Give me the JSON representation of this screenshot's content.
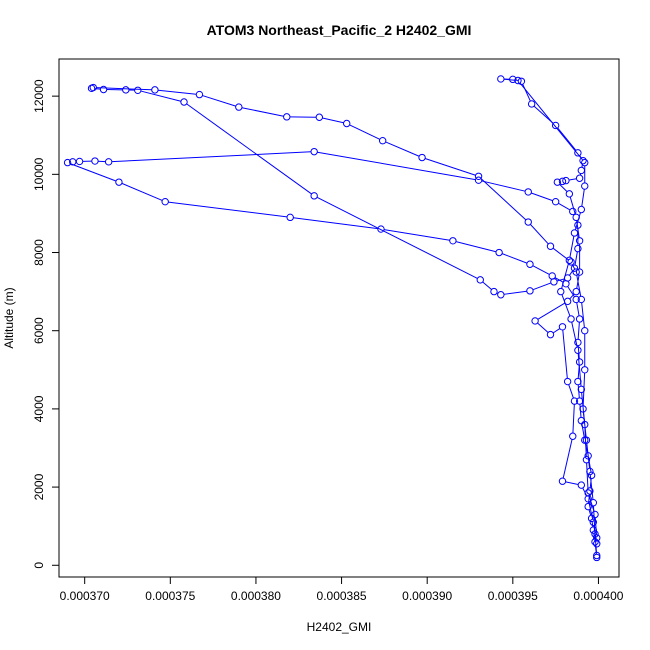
{
  "chart_data": {
    "type": "line",
    "title": "ATOM3 Northeast_Pacific_2 H2402_GMI",
    "xlabel": "H2402_GMI",
    "ylabel": "Altitude (m)",
    "xlim": [
      0.0003685,
      0.0004012
    ],
    "ylim": [
      -300,
      12950
    ],
    "x_ticks": [
      0.00037,
      0.000375,
      0.00038,
      0.000385,
      0.00039,
      0.000395,
      0.0004
    ],
    "x_tick_labels": [
      "0.000370",
      "0.000375",
      "0.000380",
      "0.000385",
      "0.000390",
      "0.000395",
      "0.000400"
    ],
    "y_ticks": [
      0,
      2000,
      4000,
      6000,
      8000,
      10000,
      12000
    ],
    "y_tick_labels": [
      "0",
      "2000",
      "4000",
      "6000",
      "8000",
      "10000",
      "12000"
    ],
    "color": "#0000ff",
    "series": [
      {
        "values": [
          [
            0.0003999,
            200
          ],
          [
            0.0003998,
            600
          ],
          [
            0.0003997,
            900
          ],
          [
            0.0003996,
            1200
          ],
          [
            0.0003994,
            1500
          ],
          [
            0.0003995,
            1900
          ],
          [
            0.0003996,
            2300
          ],
          [
            0.0003994,
            2800
          ],
          [
            0.0003992,
            3200
          ],
          [
            0.000399,
            3700
          ],
          [
            0.0003989,
            4200
          ],
          [
            0.0003988,
            4700
          ],
          [
            0.0003989,
            5200
          ],
          [
            0.0003988,
            5700
          ],
          [
            0.0003989,
            6300
          ],
          [
            0.0003987,
            6800
          ],
          [
            0.0003981,
            7200
          ],
          [
            0.0003973,
            7400
          ],
          [
            0.000396,
            7700
          ],
          [
            0.0003942,
            8000
          ],
          [
            0.0003915,
            8300
          ],
          [
            0.0003873,
            8600
          ],
          [
            0.000382,
            8900
          ],
          [
            0.0003747,
            9300
          ],
          [
            0.000372,
            9800
          ],
          [
            0.000369,
            10300
          ],
          [
            0.0003693,
            10320
          ],
          [
            0.0003697,
            10330
          ],
          [
            0.0003706,
            10340
          ],
          [
            0.0003714,
            10320
          ],
          [
            0.0003834,
            10580
          ],
          [
            0.000393,
            9850
          ],
          [
            0.0003959,
            9550
          ],
          [
            0.0003975,
            9300
          ],
          [
            0.0003985,
            9050
          ]
        ]
      },
      {
        "values": [
          [
            0.0003988,
            8700
          ],
          [
            0.0003988,
            8100
          ],
          [
            0.0003986,
            7600
          ],
          [
            0.0003982,
            7350
          ],
          [
            0.0003974,
            7250
          ],
          [
            0.000396,
            7020
          ],
          [
            0.0003943,
            6920
          ],
          [
            0.0003939,
            7000
          ],
          [
            0.0003931,
            7300
          ],
          [
            0.0003834,
            9450
          ],
          [
            0.0003758,
            11850
          ],
          [
            0.0003731,
            12150
          ],
          [
            0.0003724,
            12160
          ],
          [
            0.0003711,
            12170
          ],
          [
            0.0003704,
            12200
          ],
          [
            0.0003705,
            12220
          ],
          [
            0.0003741,
            12160
          ],
          [
            0.0003767,
            12040
          ],
          [
            0.000379,
            11720
          ],
          [
            0.0003818,
            11470
          ],
          [
            0.0003837,
            11460
          ],
          [
            0.0003853,
            11300
          ],
          [
            0.0003874,
            10860
          ],
          [
            0.0003897,
            10430
          ],
          [
            0.000393,
            9950
          ],
          [
            0.0003959,
            8780
          ],
          [
            0.0003972,
            8160
          ],
          [
            0.0003984,
            7760
          ],
          [
            0.0003987,
            7500
          ],
          [
            0.000399,
            6800
          ],
          [
            0.0003992,
            6000
          ],
          [
            0.0003992,
            5000
          ],
          [
            0.0003991,
            4000
          ],
          [
            0.0003993,
            3200
          ],
          [
            0.0003995,
            2400
          ],
          [
            0.0003997,
            1600
          ],
          [
            0.0003998,
            800
          ],
          [
            0.0003999,
            250
          ]
        ]
      },
      {
        "values": [
          [
            0.0003999,
            550
          ],
          [
            0.0003997,
            1100
          ],
          [
            0.0003994,
            1700
          ],
          [
            0.000399,
            2050
          ],
          [
            0.0003979,
            2150
          ],
          [
            0.0003985,
            3300
          ],
          [
            0.0003986,
            4200
          ],
          [
            0.0003982,
            4700
          ],
          [
            0.0003979,
            6100
          ],
          [
            0.0003972,
            5900
          ],
          [
            0.0003963,
            6250
          ],
          [
            0.0003982,
            6750
          ],
          [
            0.0003987,
            7000
          ],
          [
            0.0003989,
            7500
          ],
          [
            0.0003989,
            8300
          ],
          [
            0.0003987,
            8900
          ],
          [
            0.0003983,
            9500
          ],
          [
            0.0003976,
            9800
          ],
          [
            0.0003979,
            9820
          ],
          [
            0.0003981,
            9840
          ],
          [
            0.0003989,
            9900
          ],
          [
            0.000399,
            10100
          ],
          [
            0.0003991,
            10350
          ],
          [
            0.0003988,
            10550
          ],
          [
            0.0003975,
            11250
          ],
          [
            0.0003961,
            11800
          ],
          [
            0.0003955,
            12380
          ],
          [
            0.000395,
            12430
          ],
          [
            0.0003943,
            12440
          ],
          [
            0.0003953,
            12400
          ],
          [
            0.0003992,
            10300
          ],
          [
            0.0003992,
            9700
          ],
          [
            0.000399,
            9100
          ],
          [
            0.0003986,
            8500
          ],
          [
            0.0003983,
            7800
          ],
          [
            0.0003978,
            7000
          ],
          [
            0.0003984,
            6300
          ],
          [
            0.0003988,
            5500
          ],
          [
            0.000399,
            4500
          ],
          [
            0.0003992,
            3600
          ],
          [
            0.0003993,
            2700
          ],
          [
            0.0003994,
            1850
          ],
          [
            0.0003998,
            1300
          ],
          [
            0.0003999,
            700
          ]
        ]
      }
    ]
  }
}
